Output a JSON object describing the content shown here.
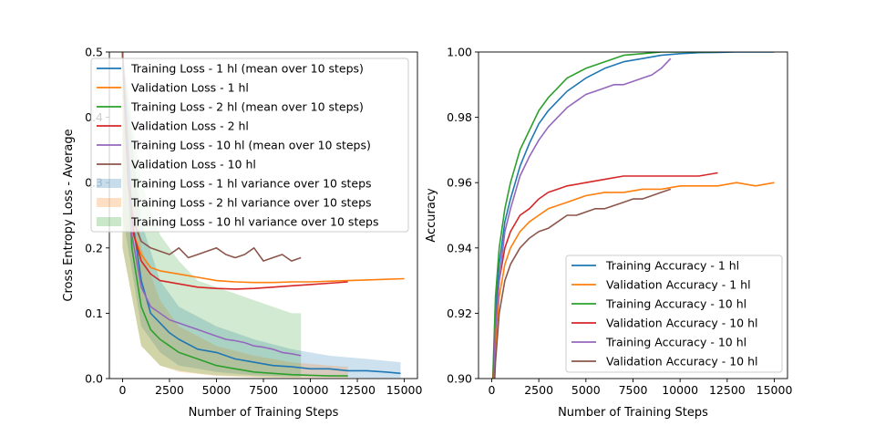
{
  "chart_data": [
    {
      "type": "line",
      "title": "",
      "xlabel": "Number of Training Steps",
      "ylabel": "Cross Entropy Loss - Average",
      "xlim": [
        -700,
        15700
      ],
      "ylim": [
        0,
        0.5
      ],
      "xticks": [
        "0",
        "2500",
        "5000",
        "7500",
        "10000",
        "12500",
        "15000"
      ],
      "yticks": [
        "0.0",
        "0.1",
        "0.2",
        "0.3",
        "0.4",
        "0.5"
      ],
      "grid": false,
      "legend_position": "top-left",
      "series": [
        {
          "name": "Training Loss - 1 hl (mean over 10 steps)",
          "color": "#1f77b4",
          "kind": "line",
          "x": [
            0,
            500,
            1000,
            1500,
            2000,
            2500,
            3000,
            4000,
            5000,
            6000,
            7000,
            8000,
            9000,
            10000,
            11000,
            12000,
            13000,
            14000,
            14800
          ],
          "y": [
            0.5,
            0.25,
            0.15,
            0.1,
            0.085,
            0.07,
            0.06,
            0.045,
            0.04,
            0.03,
            0.025,
            0.02,
            0.018,
            0.015,
            0.015,
            0.012,
            0.012,
            0.01,
            0.008
          ]
        },
        {
          "name": "Validation Loss - 1 hl",
          "color": "#ff7f0e",
          "kind": "line",
          "x": [
            0,
            300,
            600,
            1000,
            1500,
            2000,
            3000,
            4000,
            5000,
            6000,
            7000,
            8000,
            9000,
            10000,
            11000,
            12000,
            13000,
            14000,
            15000
          ],
          "y": [
            0.5,
            0.3,
            0.22,
            0.19,
            0.17,
            0.165,
            0.16,
            0.155,
            0.15,
            0.148,
            0.147,
            0.147,
            0.148,
            0.148,
            0.149,
            0.15,
            0.151,
            0.152,
            0.153
          ]
        },
        {
          "name": "Training Loss - 2 hl (mean over 10 steps)",
          "color": "#2ca02c",
          "kind": "line",
          "x": [
            0,
            500,
            1000,
            1500,
            2000,
            2500,
            3000,
            4000,
            5000,
            6000,
            7000,
            8000,
            9000,
            10000,
            11000,
            12000
          ],
          "y": [
            0.5,
            0.2,
            0.11,
            0.075,
            0.06,
            0.05,
            0.04,
            0.03,
            0.02,
            0.015,
            0.01,
            0.008,
            0.006,
            0.005,
            0.004,
            0.004
          ]
        },
        {
          "name": "Validation Loss - 2 hl",
          "color": "#d62728",
          "kind": "line",
          "x": [
            0,
            300,
            600,
            1000,
            1500,
            2000,
            3000,
            4000,
            5000,
            6000,
            7000,
            8000,
            9000,
            10000,
            11000,
            12000
          ],
          "y": [
            0.5,
            0.3,
            0.22,
            0.18,
            0.16,
            0.15,
            0.145,
            0.14,
            0.138,
            0.137,
            0.138,
            0.14,
            0.142,
            0.144,
            0.146,
            0.148
          ]
        },
        {
          "name": "Training Loss - 10 hl (mean over 10 steps)",
          "color": "#9467bd",
          "kind": "line",
          "x": [
            0,
            500,
            1000,
            1500,
            2000,
            2500,
            3000,
            3500,
            4000,
            4500,
            5000,
            5500,
            6000,
            6500,
            7000,
            7500,
            8000,
            8500,
            9000,
            9500
          ],
          "y": [
            0.5,
            0.22,
            0.14,
            0.11,
            0.1,
            0.09,
            0.085,
            0.08,
            0.075,
            0.07,
            0.065,
            0.06,
            0.058,
            0.055,
            0.05,
            0.048,
            0.045,
            0.04,
            0.038,
            0.035
          ]
        },
        {
          "name": "Validation Loss - 10 hl",
          "color": "#8c564b",
          "kind": "line",
          "x": [
            0,
            300,
            600,
            1000,
            1500,
            2000,
            2500,
            3000,
            3500,
            4000,
            4500,
            5000,
            5500,
            6000,
            6500,
            7000,
            7500,
            8000,
            8500,
            9000,
            9500
          ],
          "y": [
            0.5,
            0.3,
            0.24,
            0.21,
            0.2,
            0.195,
            0.19,
            0.2,
            0.185,
            0.19,
            0.195,
            0.2,
            0.19,
            0.185,
            0.19,
            0.2,
            0.18,
            0.185,
            0.19,
            0.18,
            0.185
          ]
        },
        {
          "name": "Training Loss - 1 hl variance over 10 steps",
          "color": "#1f77b4",
          "kind": "band",
          "x": [
            0,
            1000,
            2000,
            3000,
            5000,
            7000,
            9000,
            11000,
            13000,
            14800
          ],
          "lower": [
            0.25,
            0.08,
            0.04,
            0.02,
            0.01,
            0.005,
            0.003,
            0.002,
            0.001,
            0.001
          ],
          "upper": [
            0.5,
            0.24,
            0.15,
            0.11,
            0.08,
            0.06,
            0.045,
            0.035,
            0.03,
            0.025
          ]
        },
        {
          "name": "Training Loss - 2 hl variance over 10 steps",
          "color": "#ff7f0e",
          "kind": "band",
          "x": [
            0,
            1000,
            2000,
            3000,
            5000,
            7000,
            9000,
            11000,
            12000
          ],
          "lower": [
            0.2,
            0.05,
            0.02,
            0.01,
            0.004,
            0.002,
            0.001,
            0.001,
            0.001
          ],
          "upper": [
            0.5,
            0.2,
            0.12,
            0.08,
            0.05,
            0.035,
            0.025,
            0.02,
            0.018
          ]
        },
        {
          "name": "Training Loss - 10 hl variance over 10 steps",
          "color": "#2ca02c",
          "kind": "band",
          "x": [
            0,
            1000,
            2000,
            3000,
            4000,
            5000,
            6000,
            7000,
            8000,
            9000,
            9500
          ],
          "lower": [
            0.2,
            0.05,
            0.02,
            0.012,
            0.008,
            0.005,
            0.004,
            0.003,
            0.002,
            0.002,
            0.002
          ],
          "upper": [
            0.5,
            0.3,
            0.22,
            0.18,
            0.15,
            0.14,
            0.13,
            0.12,
            0.11,
            0.1,
            0.1
          ]
        }
      ]
    },
    {
      "type": "line",
      "title": "",
      "xlabel": "Number of Training Steps",
      "ylabel": "Accuracy",
      "xlim": [
        -700,
        15700
      ],
      "ylim": [
        0.9,
        1.0
      ],
      "xticks": [
        "0",
        "2500",
        "5000",
        "7500",
        "10000",
        "12500",
        "15000"
      ],
      "yticks": [
        "0.90",
        "0.92",
        "0.94",
        "0.96",
        "0.98",
        "1.00"
      ],
      "grid": false,
      "legend_position": "lower-right",
      "series": [
        {
          "name": "Training Accuracy - 1 hl",
          "color": "#1f77b4",
          "x": [
            0,
            200,
            400,
            700,
            1000,
            1500,
            2000,
            2500,
            3000,
            3500,
            4000,
            5000,
            6000,
            7000,
            8000,
            9000,
            10000,
            11000,
            12000,
            13000,
            14000,
            15000
          ],
          "y": [
            0.88,
            0.92,
            0.935,
            0.948,
            0.955,
            0.965,
            0.972,
            0.978,
            0.982,
            0.985,
            0.988,
            0.992,
            0.995,
            0.997,
            0.998,
            0.999,
            0.9995,
            0.9998,
            0.9999,
            1.0,
            1.0,
            1.0
          ]
        },
        {
          "name": "Validation Accuracy - 1 hl",
          "color": "#ff7f0e",
          "x": [
            0,
            200,
            400,
            700,
            1000,
            1500,
            2000,
            2500,
            3000,
            3500,
            4000,
            5000,
            6000,
            7000,
            8000,
            9000,
            10000,
            11000,
            12000,
            13000,
            14000,
            15000
          ],
          "y": [
            0.88,
            0.91,
            0.925,
            0.935,
            0.94,
            0.945,
            0.948,
            0.95,
            0.952,
            0.953,
            0.954,
            0.956,
            0.957,
            0.957,
            0.958,
            0.958,
            0.959,
            0.959,
            0.959,
            0.96,
            0.959,
            0.96
          ]
        },
        {
          "name": "Training Accuracy - 10 hl",
          "color": "#2ca02c",
          "x": [
            0,
            200,
            400,
            700,
            1000,
            1500,
            2000,
            2500,
            3000,
            3500,
            4000,
            5000,
            6000,
            7000,
            8000,
            9000,
            10000,
            11000,
            12000
          ],
          "y": [
            0.89,
            0.925,
            0.94,
            0.952,
            0.96,
            0.97,
            0.976,
            0.982,
            0.986,
            0.989,
            0.992,
            0.995,
            0.997,
            0.999,
            0.9995,
            1.0,
            1.0,
            1.0,
            1.0
          ]
        },
        {
          "name": "Validation Accuracy - 10 hl",
          "color": "#d62728",
          "x": [
            0,
            200,
            400,
            700,
            1000,
            1500,
            2000,
            2500,
            3000,
            3500,
            4000,
            5000,
            6000,
            7000,
            8000,
            9000,
            10000,
            11000,
            12000
          ],
          "y": [
            0.89,
            0.915,
            0.93,
            0.94,
            0.945,
            0.95,
            0.952,
            0.955,
            0.957,
            0.958,
            0.959,
            0.96,
            0.961,
            0.962,
            0.962,
            0.962,
            0.962,
            0.962,
            0.963
          ]
        },
        {
          "name": "Training Accuracy - 10 hl",
          "color": "#9467bd",
          "x": [
            0,
            200,
            400,
            700,
            1000,
            1500,
            2000,
            2500,
            3000,
            3500,
            4000,
            4500,
            5000,
            5500,
            6000,
            6500,
            7000,
            7500,
            8000,
            8500,
            9000,
            9500
          ],
          "y": [
            0.88,
            0.915,
            0.93,
            0.945,
            0.952,
            0.962,
            0.968,
            0.973,
            0.977,
            0.98,
            0.983,
            0.985,
            0.987,
            0.988,
            0.989,
            0.99,
            0.99,
            0.991,
            0.992,
            0.993,
            0.995,
            0.998
          ]
        },
        {
          "name": "Validation Accuracy - 10 hl",
          "color": "#8c564b",
          "x": [
            0,
            200,
            400,
            700,
            1000,
            1500,
            2000,
            2500,
            3000,
            3500,
            4000,
            4500,
            5000,
            5500,
            6000,
            6500,
            7000,
            7500,
            8000,
            8500,
            9000,
            9500
          ],
          "y": [
            0.88,
            0.905,
            0.92,
            0.93,
            0.935,
            0.94,
            0.943,
            0.945,
            0.946,
            0.948,
            0.95,
            0.95,
            0.951,
            0.952,
            0.952,
            0.953,
            0.954,
            0.955,
            0.955,
            0.956,
            0.957,
            0.958
          ]
        }
      ]
    }
  ]
}
